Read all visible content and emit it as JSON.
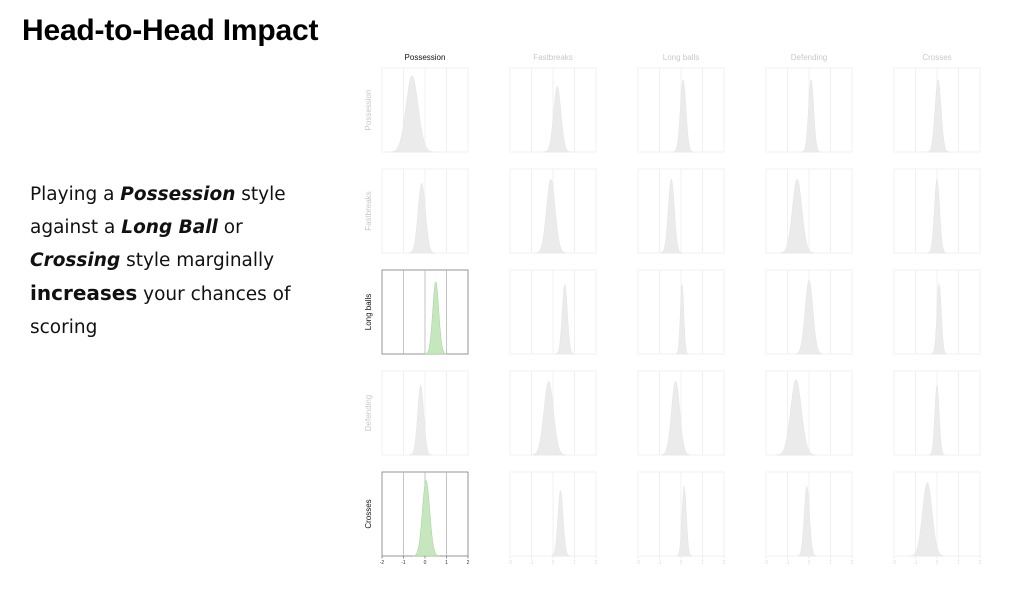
{
  "slide": {
    "title": "Head-to-Head Impact",
    "text": {
      "l1a": "Playing a ",
      "l1b": "Possession",
      "l1c": " style",
      "l2a": "against a ",
      "l2b": "Long Ball",
      "l2c": " or",
      "l3a": "Crossing",
      "l3b": " style marginally",
      "l4a": "increases",
      "l4b": " your chances of",
      "l5": "scoring"
    }
  },
  "colors": {
    "highlight_fill": "#c6e7be",
    "highlight_stroke": "#9fd293",
    "faded_fill": "#ebebeb",
    "faded_text": "#c8c8c8",
    "active_text": "#111111"
  },
  "chart_data": {
    "type": "histogram-matrix",
    "columns": [
      "Possession",
      "Fastbreaks",
      "Long balls",
      "Defending",
      "Crosses"
    ],
    "rows": [
      "Possession",
      "Fastbreaks",
      "Long balls",
      "Defending",
      "Crosses"
    ],
    "active_column": "Possession",
    "active_rows": [
      "Long balls",
      "Crosses"
    ],
    "xlim": [
      -2,
      2
    ],
    "x_ticks": [
      -2,
      -1,
      0,
      1,
      2
    ],
    "grid": true,
    "cells": [
      [
        {
          "mean": -0.6,
          "sd": 0.28,
          "h": 0.93
        },
        {
          "mean": 0.2,
          "sd": 0.17,
          "h": 0.8
        },
        {
          "mean": 0.1,
          "sd": 0.13,
          "h": 0.88
        },
        {
          "mean": 0.1,
          "sd": 0.12,
          "h": 0.88
        },
        {
          "mean": 0.05,
          "sd": 0.14,
          "h": 0.88
        }
      ],
      [
        {
          "mean": -0.15,
          "sd": 0.17,
          "h": 0.85
        },
        {
          "mean": -0.1,
          "sd": 0.2,
          "h": 0.9
        },
        {
          "mean": -0.45,
          "sd": 0.14,
          "h": 0.9
        },
        {
          "mean": -0.55,
          "sd": 0.22,
          "h": 0.9
        },
        {
          "mean": 0.0,
          "sd": 0.12,
          "h": 0.9
        }
      ],
      [
        {
          "mean": 0.5,
          "sd": 0.14,
          "h": 0.88
        },
        {
          "mean": 0.55,
          "sd": 0.12,
          "h": 0.85
        },
        {
          "mean": 0.05,
          "sd": 0.08,
          "h": 0.85
        },
        {
          "mean": 0.0,
          "sd": 0.18,
          "h": 0.9
        },
        {
          "mean": 0.1,
          "sd": 0.1,
          "h": 0.85
        }
      ],
      [
        {
          "mean": -0.2,
          "sd": 0.14,
          "h": 0.85
        },
        {
          "mean": -0.2,
          "sd": 0.22,
          "h": 0.9
        },
        {
          "mean": -0.25,
          "sd": 0.19,
          "h": 0.9
        },
        {
          "mean": -0.6,
          "sd": 0.25,
          "h": 0.92
        },
        {
          "mean": 0.0,
          "sd": 0.1,
          "h": 0.85
        }
      ],
      [
        {
          "mean": 0.05,
          "sd": 0.17,
          "h": 0.92
        },
        {
          "mean": 0.35,
          "sd": 0.12,
          "h": 0.8
        },
        {
          "mean": 0.15,
          "sd": 0.1,
          "h": 0.85
        },
        {
          "mean": -0.1,
          "sd": 0.12,
          "h": 0.85
        },
        {
          "mean": -0.45,
          "sd": 0.22,
          "h": 0.9
        }
      ]
    ]
  }
}
